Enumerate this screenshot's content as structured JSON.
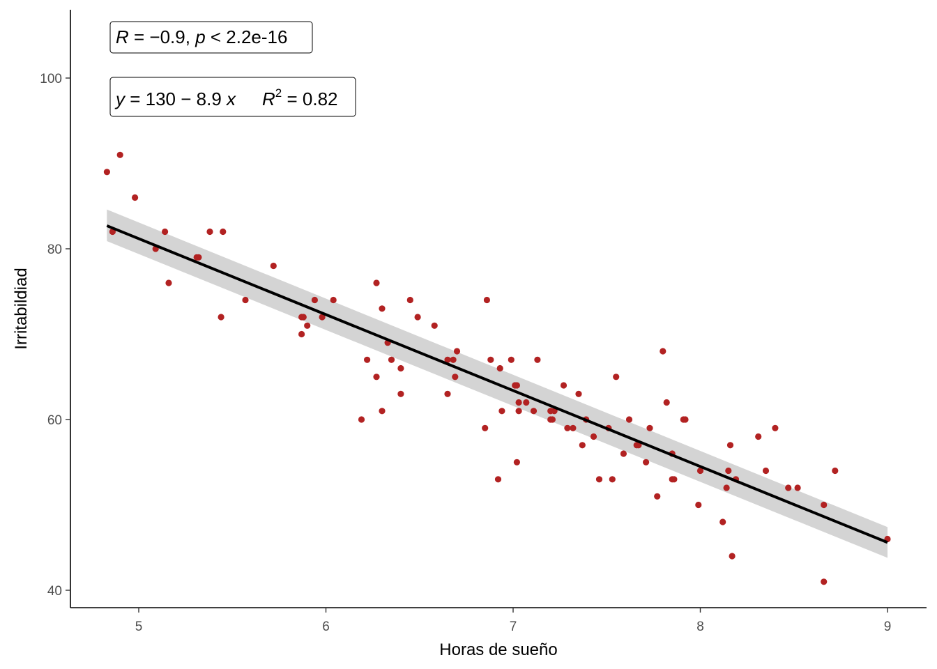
{
  "chart_data": {
    "type": "scatter",
    "xlabel": "Horas de sueño",
    "ylabel": "Irritabildiad",
    "xlim": [
      4.65,
      9.2
    ],
    "ylim": [
      38,
      108
    ],
    "x_ticks": [
      5,
      6,
      7,
      8,
      9
    ],
    "y_ticks": [
      40,
      60,
      80,
      100
    ],
    "grid": false,
    "colors": {
      "points": "#b22222",
      "line": "#000000",
      "band": "#bdbdbd",
      "axis": "#000000",
      "tick_label": "#4d4d4d"
    },
    "points": [
      [
        4.83,
        89
      ],
      [
        4.86,
        82
      ],
      [
        4.9,
        91
      ],
      [
        4.98,
        86
      ],
      [
        5.09,
        80
      ],
      [
        5.14,
        82
      ],
      [
        5.16,
        76
      ],
      [
        5.31,
        79
      ],
      [
        5.32,
        79
      ],
      [
        5.38,
        82
      ],
      [
        5.44,
        72
      ],
      [
        5.45,
        82
      ],
      [
        5.57,
        74
      ],
      [
        5.72,
        78
      ],
      [
        5.87,
        70
      ],
      [
        5.87,
        72
      ],
      [
        5.88,
        72
      ],
      [
        5.9,
        71
      ],
      [
        5.94,
        74
      ],
      [
        5.98,
        72
      ],
      [
        6.04,
        74
      ],
      [
        6.19,
        60
      ],
      [
        6.22,
        67
      ],
      [
        6.27,
        65
      ],
      [
        6.27,
        76
      ],
      [
        6.3,
        73
      ],
      [
        6.3,
        61
      ],
      [
        6.33,
        69
      ],
      [
        6.35,
        67
      ],
      [
        6.4,
        66
      ],
      [
        6.4,
        63
      ],
      [
        6.45,
        74
      ],
      [
        6.49,
        72
      ],
      [
        6.58,
        71
      ],
      [
        6.65,
        63
      ],
      [
        6.65,
        67
      ],
      [
        6.68,
        67
      ],
      [
        6.69,
        65
      ],
      [
        6.7,
        68
      ],
      [
        6.85,
        59
      ],
      [
        6.86,
        74
      ],
      [
        6.88,
        67
      ],
      [
        6.92,
        53
      ],
      [
        6.93,
        66
      ],
      [
        6.94,
        61
      ],
      [
        6.99,
        67
      ],
      [
        7.01,
        64
      ],
      [
        7.02,
        64
      ],
      [
        7.02,
        55
      ],
      [
        7.03,
        61
      ],
      [
        7.03,
        62
      ],
      [
        7.07,
        62
      ],
      [
        7.11,
        61
      ],
      [
        7.13,
        67
      ],
      [
        7.2,
        60
      ],
      [
        7.2,
        61
      ],
      [
        7.21,
        60
      ],
      [
        7.22,
        61
      ],
      [
        7.27,
        64
      ],
      [
        7.29,
        59
      ],
      [
        7.32,
        59
      ],
      [
        7.35,
        63
      ],
      [
        7.37,
        57
      ],
      [
        7.39,
        60
      ],
      [
        7.43,
        58
      ],
      [
        7.46,
        53
      ],
      [
        7.51,
        59
      ],
      [
        7.53,
        53
      ],
      [
        7.55,
        65
      ],
      [
        7.59,
        56
      ],
      [
        7.62,
        60
      ],
      [
        7.66,
        57
      ],
      [
        7.67,
        57
      ],
      [
        7.71,
        55
      ],
      [
        7.73,
        59
      ],
      [
        7.77,
        51
      ],
      [
        7.8,
        68
      ],
      [
        7.82,
        62
      ],
      [
        7.85,
        53
      ],
      [
        7.85,
        56
      ],
      [
        7.86,
        53
      ],
      [
        7.91,
        60
      ],
      [
        7.92,
        60
      ],
      [
        7.99,
        50
      ],
      [
        8.0,
        54
      ],
      [
        8.12,
        48
      ],
      [
        8.14,
        52
      ],
      [
        8.15,
        54
      ],
      [
        8.16,
        57
      ],
      [
        8.17,
        44
      ],
      [
        8.19,
        53
      ],
      [
        8.31,
        58
      ],
      [
        8.35,
        54
      ],
      [
        8.4,
        59
      ],
      [
        8.47,
        52
      ],
      [
        8.52,
        52
      ],
      [
        8.66,
        41
      ],
      [
        8.66,
        50
      ],
      [
        8.72,
        54
      ],
      [
        9.0,
        46
      ]
    ],
    "fit": {
      "x": [
        4.83,
        9.0
      ],
      "y": [
        82.7,
        45.6
      ],
      "band_upper": [
        84.6,
        47.4
      ],
      "band_lower": [
        80.9,
        43.8
      ]
    },
    "annotations": {
      "corr": {
        "R_label": "R",
        "R_value": " = −0.9, ",
        "p_label": "p",
        "p_value": " < 2.2e-16"
      },
      "eq": {
        "y_label": "y",
        "eq_body": " = 130 − 8.9 ",
        "x_label": "x",
        "R2_label": "R",
        "R2_sup": "2",
        "R2_value": " = 0.82"
      }
    }
  }
}
